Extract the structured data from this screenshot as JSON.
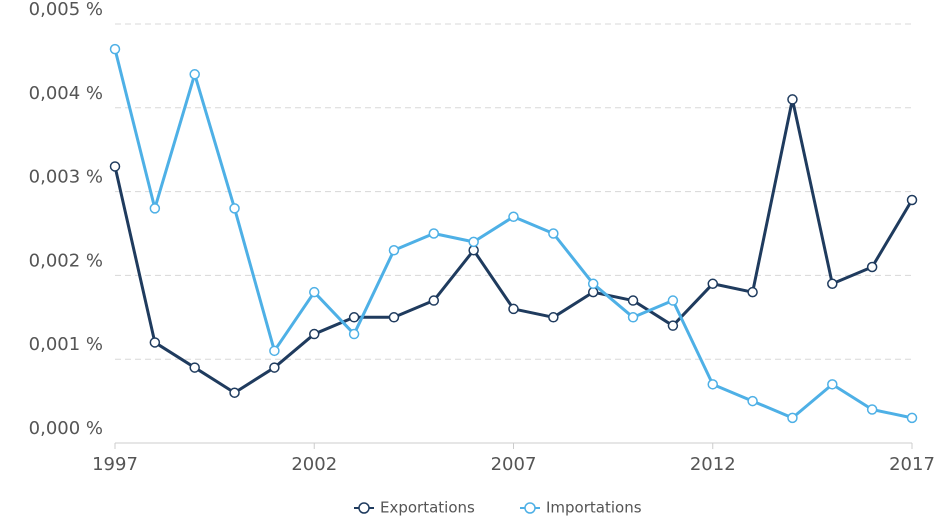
{
  "chart_data": {
    "type": "line",
    "x": [
      1997,
      1998,
      1999,
      2000,
      2001,
      2002,
      2003,
      2004,
      2005,
      2006,
      2007,
      2008,
      2009,
      2010,
      2011,
      2012,
      2013,
      2014,
      2015,
      2016,
      2017
    ],
    "series": [
      {
        "name": "Exportations",
        "color": "#1f3b5e",
        "values": [
          0.0033,
          0.0012,
          0.0009,
          0.0006,
          0.0009,
          0.0013,
          0.0015,
          0.0015,
          0.0017,
          0.0023,
          0.0016,
          0.0015,
          0.0018,
          0.0017,
          0.0014,
          0.0019,
          0.0018,
          0.0041,
          0.0019,
          0.0021,
          0.0029
        ]
      },
      {
        "name": "Importations",
        "color": "#4eb0e6",
        "values": [
          0.0047,
          0.0028,
          0.0044,
          0.0028,
          0.0011,
          0.0018,
          0.0013,
          0.0023,
          0.0025,
          0.0024,
          0.0027,
          0.0025,
          0.0019,
          0.0015,
          0.0017,
          0.0007,
          0.0005,
          0.0003,
          0.0007,
          0.0004,
          0.0003
        ]
      }
    ],
    "xlim": [
      1997,
      2017
    ],
    "xticks": [
      1997,
      2002,
      2007,
      2012,
      2017
    ],
    "ylim": [
      0,
      0.005
    ],
    "yticks": [
      {
        "value": 0,
        "label": "0,000 %"
      },
      {
        "value": 0.001,
        "label": "0,001 %"
      },
      {
        "value": 0.002,
        "label": "0,002 %"
      },
      {
        "value": 0.003,
        "label": "0,003 %"
      },
      {
        "value": 0.004,
        "label": "0,004 %"
      },
      {
        "value": 0.005,
        "label": "0,005 %"
      }
    ],
    "grid": true,
    "legend": "bottom"
  }
}
